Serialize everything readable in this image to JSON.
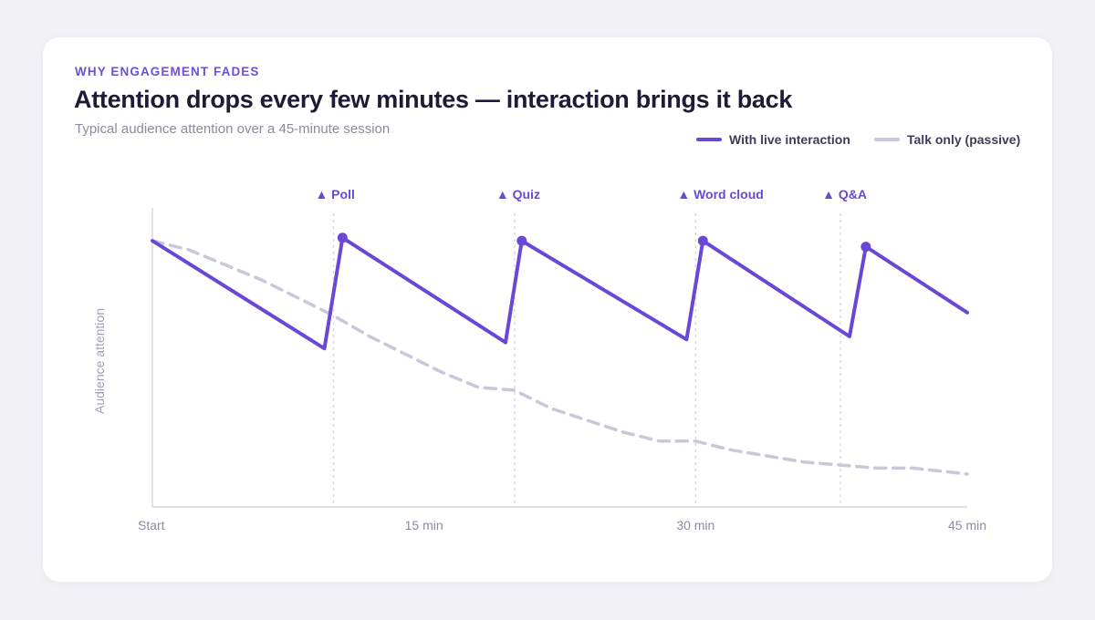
{
  "header": {
    "eyebrow": "WHY ENGAGEMENT FADES",
    "title": "Attention drops every few minutes — interaction brings it back",
    "subtitle": "Typical audience attention over a 45-minute session"
  },
  "legend": {
    "live_label": "With live interaction",
    "passive_label": "Talk only (passive)"
  },
  "colors": {
    "live": "#6a48d6",
    "passive": "#c9c7d9",
    "axis": "#d9d7e4",
    "event_line": "#d6d4e2",
    "event_label": "#6a48d6",
    "tick_label": "#8c8aa3"
  },
  "chart_data": {
    "type": "line",
    "title": "Attention drops every few minutes — interaction brings it back",
    "subtitle": "Typical audience attention over a 45-minute session",
    "xlabel": "",
    "ylabel": "Audience attention",
    "xlim": [
      0,
      45
    ],
    "ylim": [
      0,
      100
    ],
    "x_ticks": [
      {
        "value": 0,
        "label": "Start"
      },
      {
        "value": 15,
        "label": "15 min"
      },
      {
        "value": 30,
        "label": "30 min"
      },
      {
        "value": 45,
        "label": "45 min"
      }
    ],
    "events": [
      {
        "x": 10,
        "label": "▲ Poll"
      },
      {
        "x": 20,
        "label": "▲ Quiz"
      },
      {
        "x": 30,
        "label": "▲ Word cloud"
      },
      {
        "x": 38,
        "label": "▲ Q&A"
      }
    ],
    "series": [
      {
        "name": "With live interaction",
        "style": "solid",
        "points": [
          [
            0,
            89
          ],
          [
            9.5,
            53
          ],
          [
            10.5,
            90
          ],
          [
            19.5,
            55
          ],
          [
            20.4,
            89
          ],
          [
            29.5,
            56
          ],
          [
            30.4,
            89
          ],
          [
            38.5,
            57
          ],
          [
            39.4,
            87
          ],
          [
            45,
            65
          ]
        ],
        "markers": [
          [
            10.5,
            90
          ],
          [
            20.4,
            89
          ],
          [
            30.4,
            89
          ],
          [
            39.4,
            87
          ]
        ]
      },
      {
        "name": "Talk only (passive)",
        "style": "dashed",
        "points": [
          [
            0,
            89
          ],
          [
            2,
            86
          ],
          [
            4,
            81
          ],
          [
            6,
            76
          ],
          [
            8,
            70
          ],
          [
            10,
            64
          ],
          [
            12,
            57
          ],
          [
            14,
            51
          ],
          [
            16,
            45
          ],
          [
            18,
            40
          ],
          [
            20,
            39
          ],
          [
            22,
            33
          ],
          [
            24,
            29
          ],
          [
            26,
            25
          ],
          [
            28,
            22
          ],
          [
            30,
            22
          ],
          [
            32,
            19
          ],
          [
            34,
            17
          ],
          [
            36,
            15
          ],
          [
            38,
            14
          ],
          [
            40,
            13
          ],
          [
            42,
            13
          ],
          [
            45,
            11
          ]
        ]
      }
    ],
    "grid": false,
    "legend_position": "top-right"
  }
}
